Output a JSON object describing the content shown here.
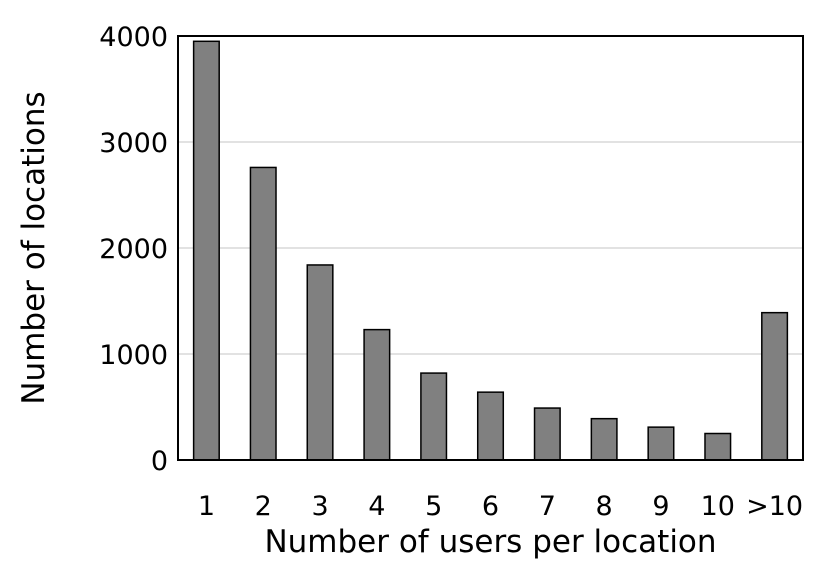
{
  "chart_data": {
    "type": "bar",
    "title": "",
    "xlabel": "Number of users per location",
    "ylabel": "Number of locations",
    "categories": [
      "1",
      "2",
      "3",
      "4",
      "5",
      "6",
      "7",
      "8",
      "9",
      "10",
      ">10"
    ],
    "values": [
      3950,
      2760,
      1840,
      1230,
      820,
      640,
      490,
      390,
      310,
      250,
      1390
    ],
    "ylim": [
      0,
      4000
    ],
    "yticks": [
      0,
      1000,
      2000,
      3000,
      4000
    ],
    "grid": true,
    "legend": "none",
    "colors": {
      "bar_fill": "#808080",
      "bar_stroke": "#000000",
      "grid": "#d9d9d9",
      "frame": "#000000"
    }
  }
}
